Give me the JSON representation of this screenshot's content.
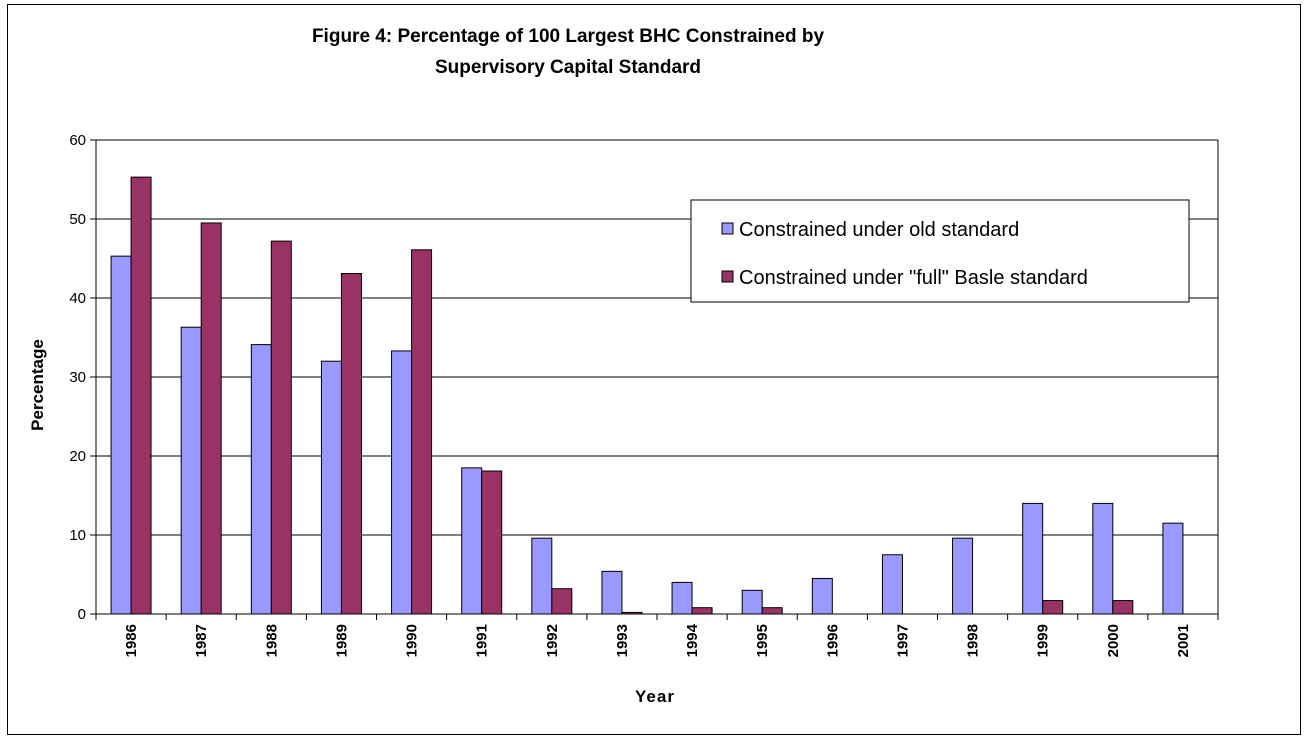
{
  "chart_data": {
    "type": "bar",
    "title_lines": [
      "Figure 4: Percentage of 100 Largest BHC Constrained by",
      "Supervisory Capital Standard"
    ],
    "xlabel": "Year",
    "ylabel": "Percentage",
    "ylim": [
      0,
      60
    ],
    "yticks": [
      0,
      10,
      20,
      30,
      40,
      50,
      60
    ],
    "grid": true,
    "legend_position": "top-right",
    "categories": [
      "1986",
      "1987",
      "1988",
      "1989",
      "1990",
      "1991",
      "1992",
      "1993",
      "1994",
      "1995",
      "1996",
      "1997",
      "1998",
      "1999",
      "2000",
      "2001"
    ],
    "series": [
      {
        "name": "Constrained under old standard",
        "color": "#9999ff",
        "values": [
          45.3,
          36.3,
          34.1,
          32.0,
          33.3,
          18.5,
          9.6,
          5.4,
          4.0,
          3.0,
          4.5,
          7.5,
          9.6,
          14.0,
          14.0,
          11.5
        ]
      },
      {
        "name": "Constrained under \"full\" Basle standard",
        "color": "#993366",
        "values": [
          55.3,
          49.5,
          47.2,
          43.1,
          46.1,
          18.1,
          3.2,
          0.2,
          0.8,
          0.8,
          0,
          0,
          0,
          1.7,
          1.7,
          0
        ]
      }
    ]
  }
}
